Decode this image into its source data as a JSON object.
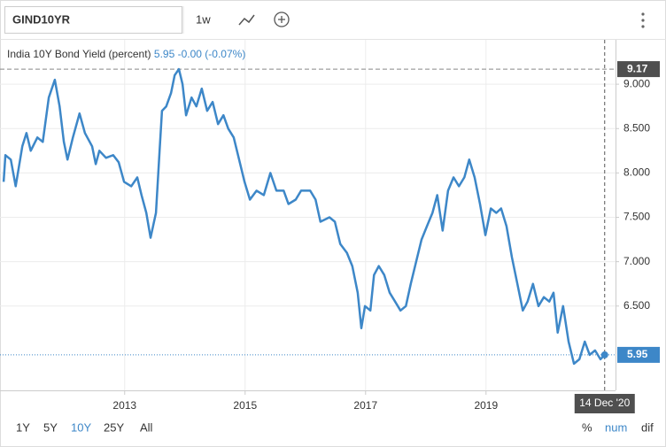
{
  "toolbar": {
    "symbol": "GIND10YR",
    "interval": "1w"
  },
  "chart_data": {
    "type": "line",
    "x": [
      2010.99,
      2011.02,
      2011.11,
      2011.19,
      2011.3,
      2011.37,
      2011.44,
      2011.55,
      2011.64,
      2011.74,
      2011.84,
      2011.92,
      2011.99,
      2012.05,
      2012.14,
      2012.25,
      2012.34,
      2012.46,
      2012.52,
      2012.58,
      2012.69,
      2012.81,
      2012.9,
      2012.99,
      2013.11,
      2013.21,
      2013.28,
      2013.36,
      2013.43,
      2013.52,
      2013.58,
      2013.62,
      2013.69,
      2013.77,
      2013.83,
      2013.9,
      2013.96,
      2014.02,
      2014.11,
      2014.19,
      2014.28,
      2014.37,
      2014.46,
      2014.55,
      2014.64,
      2014.72,
      2014.81,
      2014.9,
      2014.99,
      2015.08,
      2015.19,
      2015.31,
      2015.42,
      2015.52,
      2015.64,
      2015.72,
      2015.84,
      2015.93,
      2016.08,
      2016.17,
      2016.25,
      2016.4,
      2016.49,
      2016.58,
      2016.69,
      2016.78,
      2016.87,
      2016.93,
      2016.99,
      2017.08,
      2017.14,
      2017.22,
      2017.31,
      2017.4,
      2017.49,
      2017.58,
      2017.67,
      2017.75,
      2017.84,
      2017.93,
      2018.02,
      2018.11,
      2018.19,
      2018.28,
      2018.37,
      2018.46,
      2018.55,
      2018.64,
      2018.72,
      2018.81,
      2018.9,
      2018.99,
      2019.08,
      2019.17,
      2019.25,
      2019.34,
      2019.43,
      2019.52,
      2019.61,
      2019.69,
      2019.78,
      2019.87,
      2019.96,
      2020.05,
      2020.12,
      2020.19,
      2020.28,
      2020.37,
      2020.46,
      2020.55,
      2020.64,
      2020.72,
      2020.81,
      2020.9,
      2020.97
    ],
    "series": [
      {
        "name": "India 10Y Bond Yield (percent)",
        "color": "#3d87c8",
        "values": [
          7.9,
          8.2,
          8.15,
          7.85,
          8.3,
          8.45,
          8.25,
          8.4,
          8.35,
          8.85,
          9.05,
          8.75,
          8.35,
          8.15,
          8.4,
          8.67,
          8.45,
          8.3,
          8.1,
          8.25,
          8.17,
          8.2,
          8.12,
          7.9,
          7.85,
          7.95,
          7.75,
          7.55,
          7.27,
          7.55,
          8.25,
          8.7,
          8.75,
          8.9,
          9.1,
          9.17,
          9.0,
          8.65,
          8.85,
          8.75,
          8.95,
          8.7,
          8.8,
          8.55,
          8.65,
          8.5,
          8.4,
          8.15,
          7.9,
          7.7,
          7.8,
          7.75,
          8.0,
          7.8,
          7.8,
          7.65,
          7.7,
          7.8,
          7.8,
          7.7,
          7.45,
          7.5,
          7.45,
          7.2,
          7.1,
          6.95,
          6.65,
          6.25,
          6.5,
          6.45,
          6.85,
          6.95,
          6.85,
          6.65,
          6.55,
          6.45,
          6.5,
          6.75,
          7.0,
          7.25,
          7.4,
          7.55,
          7.75,
          7.35,
          7.8,
          7.95,
          7.85,
          7.95,
          8.15,
          7.95,
          7.65,
          7.3,
          7.6,
          7.55,
          7.6,
          7.4,
          7.05,
          6.75,
          6.45,
          6.55,
          6.75,
          6.5,
          6.6,
          6.55,
          6.65,
          6.2,
          6.5,
          6.1,
          5.85,
          5.9,
          6.1,
          5.95,
          6.0,
          5.9,
          5.95
        ]
      }
    ],
    "last_value": 5.95,
    "change": "-0.00 (-0.07%)",
    "high_value": 9.17,
    "crosshair": {
      "x": 2020.97,
      "label": "14 Dec '20"
    },
    "xlim": [
      2010.93,
      2021.15
    ],
    "xticks": [
      2013,
      2015,
      2017,
      2019
    ],
    "ylim": [
      5.55,
      9.5
    ],
    "yticks": [
      {
        "value": 6.5,
        "label": "6.500"
      },
      {
        "value": 7,
        "label": "7.000"
      },
      {
        "value": 7.5,
        "label": "7.500"
      },
      {
        "value": 8,
        "label": "8.000"
      },
      {
        "value": 8.5,
        "label": "8.500"
      },
      {
        "value": 9,
        "label": "9.000"
      }
    ],
    "grid": true
  },
  "range_buttons": [
    "1Y",
    "5Y",
    "10Y",
    "25Y",
    "All"
  ],
  "active_range": "10Y",
  "scale_buttons": [
    "%",
    "num",
    "dif"
  ],
  "active_scale": "num"
}
